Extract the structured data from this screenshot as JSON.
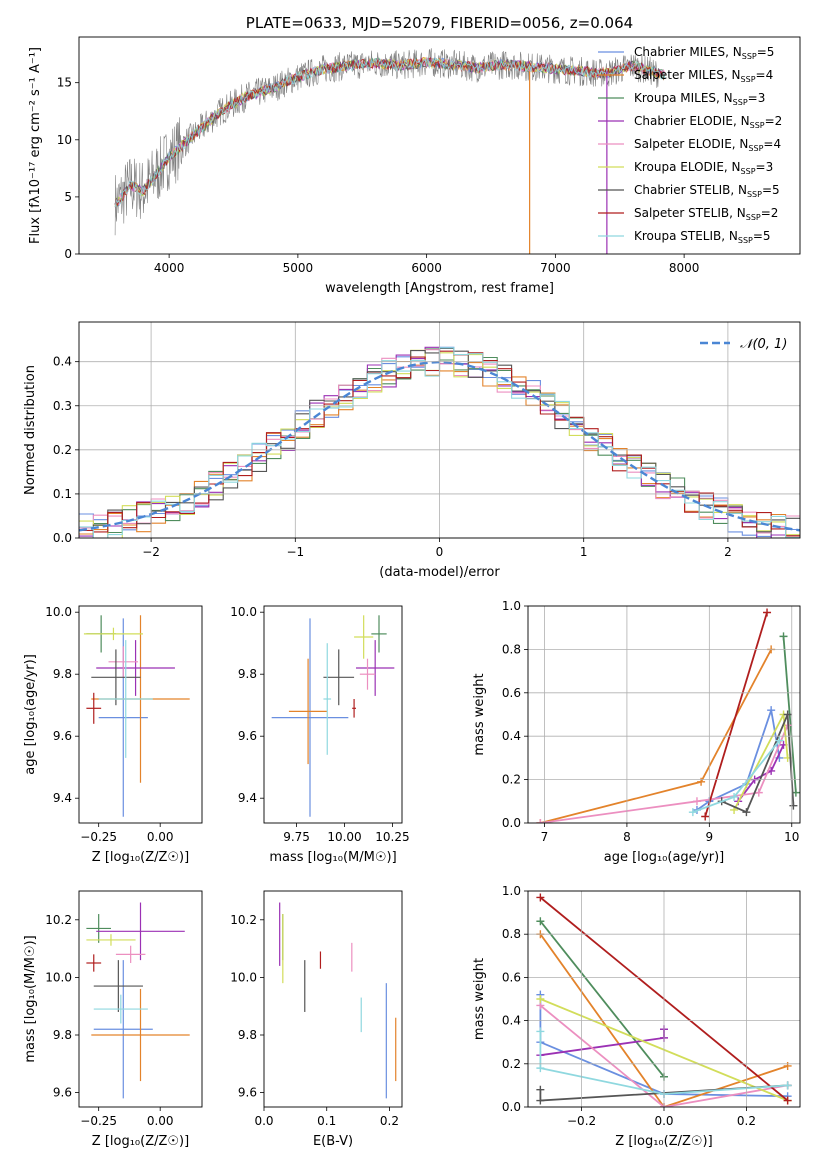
{
  "colors": [
    "#5b84d6",
    "#e2872f",
    "#4d9a4d",
    "#a83ea8",
    "#e18fbe",
    "#8c564b",
    "#de77c2",
    "#bcbd22",
    "#17becf",
    "#d62728",
    "#9467bd"
  ],
  "model_colors": [
    "#6a8fe0",
    "#e3832b",
    "#4f8d5d",
    "#9b31b4",
    "#ec8fc0",
    "#d2dd5a",
    "#555555",
    "#b01e1e",
    "#8fd8df"
  ],
  "chart_data": [
    {
      "type": "line",
      "id": "spectrum",
      "title": "PLATE=0633, MJD=52079, FIBERID=0056, z=0.064",
      "xlabel": "wavelength [Angstrom, rest frame]",
      "ylabel": "Flux [fλ10⁻¹⁷ erg cm⁻² s⁻¹ A⁻¹]",
      "xlim": [
        3300,
        8900
      ],
      "ylim": [
        0,
        19
      ],
      "xticks": [
        "4000",
        "5000",
        "6000",
        "7000",
        "8000"
      ],
      "yticks": [
        "0",
        "5",
        "10",
        "15"
      ],
      "legend": [
        "Chabrier MILES, N_SSP=5",
        "Salpeter MILES, N_SSP=4",
        "Kroupa MILES, N_SSP=3",
        "Chabrier ELODIE, N_SSP=2",
        "Salpeter ELODIE, N_SSP=4",
        "Kroupa ELODIE, N_SSP=3",
        "Chabrier STELIB, N_SSP=5",
        "Salpeter STELIB, N_SSP=2",
        "Kroupa STELIB, N_SSP=5"
      ],
      "legend_placement": "top-right",
      "continuum": {
        "x": [
          3600,
          3700,
          3800,
          3900,
          4000,
          4200,
          4400,
          4600,
          4800,
          5000,
          5200,
          5400,
          5600,
          5800,
          6000,
          6200,
          6400,
          6600,
          6800,
          7000,
          7200,
          7400,
          7600,
          7800,
          8000,
          8200,
          8400,
          8600,
          8800
        ],
        "y": [
          4.5,
          6.0,
          5.5,
          7.0,
          8.5,
          10.5,
          12.5,
          13.8,
          14.5,
          15.5,
          16.2,
          16.5,
          16.7,
          16.5,
          16.8,
          16.6,
          16.3,
          16.6,
          16.4,
          16.2,
          16.0,
          15.8,
          16.5,
          15.8,
          15.4,
          15.1,
          14.7,
          14.2,
          14.0
        ]
      },
      "grid": false
    },
    {
      "type": "line",
      "id": "residuals",
      "xlabel": "(data-model)/error",
      "ylabel": "Normed distribution",
      "xlim": [
        -2.5,
        2.5
      ],
      "ylim": [
        0,
        0.49
      ],
      "xticks": [
        "−2",
        "−1",
        "0",
        "1",
        "2"
      ],
      "yticks": [
        "0.0",
        "0.1",
        "0.2",
        "0.3",
        "0.4"
      ],
      "legend": [
        "𝒩(0, 1)"
      ],
      "legend_placement": "top-right",
      "bin_width": 0.1,
      "grid": true
    },
    {
      "type": "scatter",
      "id": "age_vs_z",
      "xlabel": "Z [log₁₀(Z/Z☉)]",
      "ylabel": "age  [log₁₀(age/yr)]",
      "xlim": [
        -0.33,
        0.17
      ],
      "ylim": [
        9.32,
        10.02
      ],
      "xticks": [
        "−0.25",
        "0.00"
      ],
      "yticks": [
        "9.4",
        "9.6",
        "9.8",
        "10.0"
      ],
      "points": [
        {
          "x": -0.15,
          "y": 9.66,
          "xerr": 0.1,
          "yerr": 0.32
        },
        {
          "x": -0.08,
          "y": 9.72,
          "xerr": 0.2,
          "yerr": 0.27
        },
        {
          "x": -0.24,
          "y": 9.93,
          "xerr": 0.06,
          "yerr": 0.06
        },
        {
          "x": -0.1,
          "y": 9.82,
          "xerr": 0.16,
          "yerr": 0.09
        },
        {
          "x": -0.15,
          "y": 9.84,
          "xerr": 0.06,
          "yerr": 0.05
        },
        {
          "x": -0.19,
          "y": 9.93,
          "xerr": 0.12,
          "yerr": 0.02
        },
        {
          "x": -0.18,
          "y": 9.79,
          "xerr": 0.1,
          "yerr": 0.09
        },
        {
          "x": -0.27,
          "y": 9.69,
          "xerr": 0.03,
          "yerr": 0.05
        },
        {
          "x": -0.14,
          "y": 9.72,
          "xerr": 0.11,
          "yerr": 0.19
        }
      ],
      "grid": false
    },
    {
      "type": "scatter",
      "id": "age_vs_mass",
      "xlabel": "mass [log₁₀(M/M☉)]",
      "ylabel": "",
      "xlim": [
        9.58,
        10.3
      ],
      "ylim": [
        9.32,
        10.02
      ],
      "xticks": [
        "9.75",
        "10.00",
        "10.25"
      ],
      "yticks": [
        "9.4",
        "9.6",
        "9.8",
        "10.0"
      ],
      "points": [
        {
          "x": 9.82,
          "y": 9.66,
          "xerr": 0.2,
          "yerr": 0.32
        },
        {
          "x": 9.81,
          "y": 9.68,
          "xerr": 0.1,
          "yerr": 0.17
        },
        {
          "x": 10.18,
          "y": 9.93,
          "xerr": 0.04,
          "yerr": 0.06
        },
        {
          "x": 10.16,
          "y": 9.82,
          "xerr": 0.1,
          "yerr": 0.09
        },
        {
          "x": 10.12,
          "y": 9.8,
          "xerr": 0.04,
          "yerr": 0.05
        },
        {
          "x": 10.1,
          "y": 9.92,
          "xerr": 0.05,
          "yerr": 0.07
        },
        {
          "x": 9.97,
          "y": 9.79,
          "xerr": 0.08,
          "yerr": 0.09
        },
        {
          "x": 10.05,
          "y": 9.69,
          "xerr": 0.01,
          "yerr": 0.03
        },
        {
          "x": 9.91,
          "y": 9.72,
          "xerr": 0.02,
          "yerr": 0.18
        }
      ],
      "grid": false
    },
    {
      "type": "line",
      "id": "weight_vs_age",
      "xlabel": "age  [log₁₀(age/yr)]",
      "ylabel": "mass weight",
      "xlim": [
        6.8,
        10.1
      ],
      "ylim": [
        0,
        1.0
      ],
      "xticks": [
        "7",
        "8",
        "9",
        "10"
      ],
      "yticks": [
        "0.0",
        "0.2",
        "0.4",
        "0.6",
        "0.8",
        "1.0"
      ],
      "series": [
        {
          "points": [
            [
              8.85,
              0.06
            ],
            [
              9.0,
              0.1
            ],
            [
              9.45,
              0.18
            ],
            [
              9.75,
              0.52
            ],
            [
              9.85,
              0.3
            ]
          ]
        },
        {
          "points": [
            [
              6.95,
              0.0
            ],
            [
              8.9,
              0.19
            ],
            [
              9.75,
              0.8
            ]
          ]
        },
        {
          "points": [
            [
              9.9,
              0.86
            ],
            [
              10.05,
              0.14
            ]
          ]
        },
        {
          "points": [
            [
              9.35,
              0.1
            ],
            [
              9.55,
              0.2
            ],
            [
              9.75,
              0.24
            ],
            [
              9.9,
              0.36
            ]
          ]
        },
        {
          "points": [
            [
              6.95,
              0.0
            ],
            [
              8.85,
              0.1
            ],
            [
              9.6,
              0.14
            ],
            [
              9.95,
              0.45
            ]
          ]
        },
        {
          "points": [
            [
              9.3,
              0.06
            ],
            [
              9.9,
              0.5
            ],
            [
              9.95,
              0.3
            ]
          ]
        },
        {
          "points": [
            [
              9.15,
              0.1
            ],
            [
              9.45,
              0.05
            ],
            [
              9.95,
              0.5
            ],
            [
              10.02,
              0.08
            ]
          ]
        },
        {
          "points": [
            [
              8.95,
              0.03
            ],
            [
              9.7,
              0.97
            ]
          ]
        },
        {
          "points": [
            [
              8.8,
              0.05
            ],
            [
              9.3,
              0.12
            ],
            [
              9.85,
              0.38
            ]
          ]
        }
      ],
      "grid": true
    },
    {
      "type": "scatter",
      "id": "mass_vs_z",
      "xlabel": "Z [log₁₀(Z/Z☉)]",
      "ylabel": "mass [log₁₀(M/M☉)]",
      "xlim": [
        -0.33,
        0.17
      ],
      "ylim": [
        9.55,
        10.3
      ],
      "xticks": [
        "−0.25",
        "0.00"
      ],
      "yticks": [
        "9.6",
        "9.8",
        "10.0",
        "10.2"
      ],
      "points": [
        {
          "x": -0.15,
          "y": 9.82,
          "xerr": 0.12,
          "yerr": 0.24
        },
        {
          "x": -0.08,
          "y": 9.8,
          "xerr": 0.2,
          "yerr": 0.16
        },
        {
          "x": -0.25,
          "y": 10.17,
          "xerr": 0.05,
          "yerr": 0.05
        },
        {
          "x": -0.08,
          "y": 10.16,
          "xerr": 0.18,
          "yerr": 0.1
        },
        {
          "x": -0.12,
          "y": 10.08,
          "xerr": 0.06,
          "yerr": 0.03
        },
        {
          "x": -0.2,
          "y": 10.13,
          "xerr": 0.1,
          "yerr": 0.02
        },
        {
          "x": -0.17,
          "y": 9.97,
          "xerr": 0.1,
          "yerr": 0.09
        },
        {
          "x": -0.27,
          "y": 10.05,
          "xerr": 0.03,
          "yerr": 0.03
        },
        {
          "x": -0.16,
          "y": 9.89,
          "xerr": 0.11,
          "yerr": 0.05
        }
      ],
      "grid": false
    },
    {
      "type": "scatter",
      "id": "mass_vs_ebv",
      "xlabel": "E(B-V)",
      "ylabel": "",
      "xlim": [
        0.0,
        0.22
      ],
      "ylim": [
        9.55,
        10.3
      ],
      "xticks": [
        "0.0",
        "0.1",
        "0.2"
      ],
      "yticks": [
        "9.6",
        "9.8",
        "10.0",
        "10.2"
      ],
      "points": [
        {
          "x": 0.195,
          "y": 9.78,
          "yerr": 0.2
        },
        {
          "x": 0.21,
          "y": 9.75,
          "yerr": 0.11
        },
        {
          "x": 0.03,
          "y": 10.14,
          "yerr": 0.08
        },
        {
          "x": 0.025,
          "y": 10.15,
          "yerr": 0.11
        },
        {
          "x": 0.14,
          "y": 10.07,
          "yerr": 0.05
        },
        {
          "x": 0.03,
          "y": 10.1,
          "yerr": 0.12
        },
        {
          "x": 0.065,
          "y": 9.97,
          "yerr": 0.09
        },
        {
          "x": 0.09,
          "y": 10.06,
          "yerr": 0.03
        },
        {
          "x": 0.155,
          "y": 9.87,
          "yerr": 0.06
        }
      ],
      "grid": false
    },
    {
      "type": "line",
      "id": "weight_vs_z",
      "xlabel": "Z [log₁₀(Z/Z☉)]",
      "ylabel": "mass weight",
      "xlim": [
        -0.33,
        0.33
      ],
      "ylim": [
        0,
        1.0
      ],
      "xticks": [
        "−0.2",
        "0.0",
        "0.2"
      ],
      "yticks": [
        "0.0",
        "0.2",
        "0.4",
        "0.6",
        "0.8",
        "1.0"
      ],
      "series": [
        {
          "points": [
            [
              -0.3,
              0.52
            ],
            [
              -0.3,
              0.3
            ],
            [
              0.0,
              0.06
            ],
            [
              0.3,
              0.05
            ]
          ]
        },
        {
          "points": [
            [
              -0.3,
              0.8
            ],
            [
              0.0,
              0.0
            ],
            [
              0.3,
              0.19
            ]
          ]
        },
        {
          "points": [
            [
              -0.3,
              0.86
            ],
            [
              0.0,
              0.14
            ]
          ]
        },
        {
          "points": [
            [
              -0.3,
              0.24
            ],
            [
              0.0,
              0.32
            ],
            [
              0.0,
              0.36
            ]
          ]
        },
        {
          "points": [
            [
              -0.3,
              0.47
            ],
            [
              0.0,
              0.0
            ],
            [
              0.3,
              0.1
            ]
          ]
        },
        {
          "points": [
            [
              -0.3,
              0.5
            ],
            [
              0.3,
              0.03
            ]
          ]
        },
        {
          "points": [
            [
              -0.3,
              0.08
            ],
            [
              -0.3,
              0.03
            ],
            [
              0.3,
              0.1
            ]
          ]
        },
        {
          "points": [
            [
              -0.3,
              0.97
            ],
            [
              0.3,
              0.03
            ]
          ]
        },
        {
          "points": [
            [
              -0.3,
              0.35
            ],
            [
              -0.3,
              0.18
            ],
            [
              0.0,
              0.06
            ],
            [
              0.3,
              0.1
            ]
          ]
        }
      ],
      "grid": true
    }
  ]
}
